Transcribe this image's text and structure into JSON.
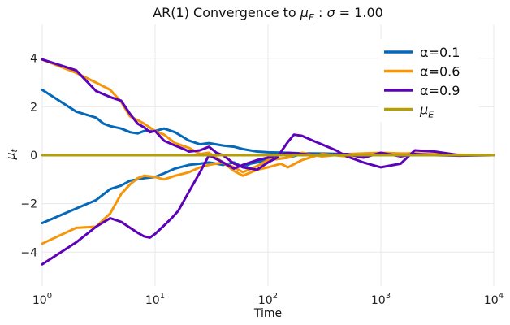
{
  "chart_data": {
    "type": "line",
    "title": "AR(1) Convergence to",
    "title_math": "μ_E : σ = 1.00",
    "xlabel": "Time",
    "ylabel": "μ_t",
    "xscale": "log",
    "xlim": [
      1,
      10000
    ],
    "ylim": [
      -5.4,
      5.4
    ],
    "grid": true,
    "legend_position": "top-right",
    "x_ticks": [
      {
        "base": "10",
        "exp": "0"
      },
      {
        "base": "10",
        "exp": "1"
      },
      {
        "base": "10",
        "exp": "2"
      },
      {
        "base": "10",
        "exp": "3"
      },
      {
        "base": "10",
        "exp": "4"
      }
    ],
    "y_ticks": [
      "−4",
      "−2",
      "0",
      "2",
      "4"
    ],
    "y_tick_values": [
      -4,
      -2,
      0,
      2,
      4
    ],
    "series": [
      {
        "name": "α=0.1",
        "color": "#0568b8",
        "runs": [
          {
            "x": [
              1,
              2,
              3,
              3.5,
              4,
              5,
              6,
              7,
              8,
              10,
              12,
              15,
              20,
              25,
              30,
              40,
              50,
              60,
              80,
              100,
              150,
              200,
              300,
              500,
              1000,
              2000,
              5000,
              10000
            ],
            "y": [
              2.7,
              1.8,
              1.55,
              1.3,
              1.2,
              1.1,
              0.95,
              0.9,
              1.0,
              1.0,
              1.1,
              0.95,
              0.6,
              0.45,
              0.5,
              0.4,
              0.35,
              0.25,
              0.15,
              0.12,
              0.1,
              0.08,
              0.07,
              0.05,
              0.03,
              0.02,
              0.01,
              0.0
            ]
          },
          {
            "x": [
              1,
              2,
              3,
              4,
              5,
              6,
              8,
              10,
              12,
              15,
              20,
              25,
              30,
              40,
              50,
              60,
              70,
              80,
              100,
              150,
              200,
              300,
              500,
              1000,
              2000,
              5000,
              10000
            ],
            "y": [
              -2.8,
              -2.2,
              -1.85,
              -1.4,
              -1.25,
              -1.05,
              -0.95,
              -0.9,
              -0.75,
              -0.55,
              -0.4,
              -0.35,
              -0.3,
              -0.4,
              -0.3,
              -0.5,
              -0.35,
              -0.3,
              -0.2,
              -0.1,
              0.05,
              0.05,
              0.05,
              0.03,
              0.02,
              0.01,
              0.0
            ]
          }
        ]
      },
      {
        "name": "α=0.6",
        "color": "#f5960a",
        "runs": [
          {
            "x": [
              1,
              2,
              3,
              4,
              5,
              6,
              7,
              8,
              10,
              12,
              15,
              20,
              25,
              30,
              40,
              50,
              60,
              80,
              100,
              150,
              200,
              300,
              500,
              1000,
              2000,
              5000,
              10000
            ],
            "y": [
              3.95,
              3.4,
              3.0,
              2.7,
              2.2,
              1.6,
              1.45,
              1.3,
              1.0,
              0.85,
              0.5,
              0.3,
              0.05,
              0.1,
              -0.3,
              -0.5,
              -0.7,
              -0.45,
              -0.2,
              -0.1,
              0.1,
              -0.05,
              0.05,
              0.1,
              0.05,
              0.02,
              0.0
            ]
          },
          {
            "x": [
              1,
              2,
              3,
              4,
              5,
              6,
              7,
              8,
              10,
              12,
              15,
              20,
              25,
              30,
              40,
              50,
              60,
              80,
              100,
              130,
              150,
              200,
              300,
              500,
              1000,
              2000,
              5000,
              10000
            ],
            "y": [
              -3.65,
              -3.0,
              -2.95,
              -2.4,
              -1.6,
              -1.2,
              -0.95,
              -0.85,
              -0.9,
              -1.0,
              -0.85,
              -0.7,
              -0.5,
              -0.4,
              -0.3,
              -0.65,
              -0.85,
              -0.6,
              -0.5,
              -0.35,
              -0.5,
              -0.2,
              0.05,
              -0.05,
              0.05,
              0.08,
              0.0,
              0.0
            ]
          }
        ]
      },
      {
        "name": "α=0.9",
        "color": "#5c02b8",
        "runs": [
          {
            "x": [
              1,
              2,
              3,
              4,
              5,
              6,
              7,
              8,
              9,
              10,
              12,
              15,
              18,
              20,
              25,
              30,
              35,
              40,
              50,
              60,
              80,
              100,
              120,
              150,
              170,
              200,
              250,
              300,
              400,
              500,
              700,
              1000,
              1500,
              2000,
              3000,
              5000,
              10000
            ],
            "y": [
              3.95,
              3.5,
              2.65,
              2.4,
              2.25,
              1.7,
              1.3,
              1.15,
              0.95,
              1.0,
              0.6,
              0.4,
              0.25,
              0.15,
              0.2,
              0.35,
              0.1,
              0.0,
              -0.35,
              -0.5,
              -0.6,
              -0.3,
              -0.1,
              0.55,
              0.85,
              0.8,
              0.6,
              0.45,
              0.2,
              -0.05,
              -0.3,
              -0.5,
              -0.35,
              0.2,
              0.15,
              0.0,
              0.0
            ]
          },
          {
            "x": [
              1,
              2,
              3,
              4,
              5,
              6,
              7,
              8,
              9,
              10,
              12,
              14,
              16,
              20,
              25,
              30,
              40,
              50,
              60,
              80,
              100,
              150,
              200,
              300,
              500,
              700,
              1000,
              1500,
              2000,
              3000,
              5000,
              10000
            ],
            "y": [
              -4.5,
              -3.6,
              -2.95,
              -2.6,
              -2.75,
              -3.0,
              -3.2,
              -3.35,
              -3.4,
              -3.25,
              -2.9,
              -2.6,
              -2.3,
              -1.5,
              -0.7,
              0.0,
              -0.3,
              -0.55,
              -0.4,
              -0.2,
              -0.1,
              0.1,
              0.05,
              0.0,
              0.05,
              -0.1,
              0.1,
              -0.05,
              0.05,
              0.0,
              -0.02,
              0.0
            ]
          }
        ]
      },
      {
        "name": "μ_E",
        "color": "#b29f0a",
        "runs": [
          {
            "x": [
              1,
              10000
            ],
            "y": [
              0,
              0
            ]
          }
        ]
      }
    ]
  }
}
